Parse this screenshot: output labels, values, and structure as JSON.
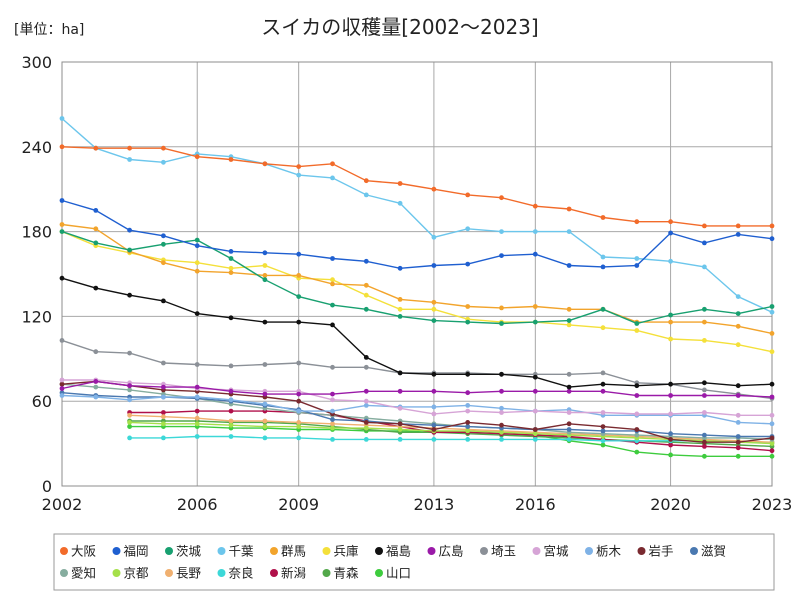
{
  "chart_data": {
    "type": "line",
    "title": "スイカの収穫量[2002〜2023]",
    "unit_label": "[単位：ha]",
    "x": [
      2002,
      2003,
      2004,
      2005,
      2006,
      2007,
      2008,
      2009,
      2010,
      2011,
      2012,
      2013,
      2014,
      2015,
      2016,
      2017,
      2018,
      2019,
      2020,
      2021,
      2022,
      2023
    ],
    "xlim": [
      2002,
      2023
    ],
    "xticks": [
      2002,
      2006,
      2009,
      2013,
      2016,
      2020,
      2023
    ],
    "ylim": [
      0,
      300
    ],
    "yticks": [
      0,
      60,
      120,
      180,
      240,
      300
    ],
    "grid": true,
    "legend_position": "bottom",
    "series": [
      {
        "name": "大阪",
        "color": "#f26b2a",
        "values": [
          240,
          239,
          239,
          239,
          233,
          231,
          228,
          226,
          228,
          216,
          214,
          210,
          206,
          204,
          198,
          196,
          190,
          187,
          187,
          184,
          184,
          184
        ]
      },
      {
        "name": "福岡",
        "color": "#1f5fd0",
        "values": [
          202,
          195,
          181,
          177,
          170,
          166,
          165,
          164,
          161,
          159,
          154,
          156,
          157,
          163,
          164,
          156,
          155,
          156,
          179,
          172,
          178,
          175
        ]
      },
      {
        "name": "茨城",
        "color": "#18a070",
        "values": [
          180,
          172,
          167,
          171,
          174,
          161,
          146,
          134,
          128,
          125,
          120,
          117,
          116,
          115,
          116,
          117,
          125,
          115,
          121,
          125,
          122,
          127
        ]
      },
      {
        "name": "千葉",
        "color": "#6cc6ec",
        "values": [
          260,
          239,
          231,
          229,
          235,
          233,
          228,
          220,
          218,
          206,
          200,
          176,
          182,
          180,
          180,
          180,
          162,
          161,
          159,
          155,
          134,
          123
        ]
      },
      {
        "name": "群馬",
        "color": "#f2a42c",
        "values": [
          185,
          182,
          166,
          158,
          152,
          151,
          149,
          149,
          143,
          142,
          132,
          130,
          127,
          126,
          127,
          125,
          125,
          116,
          116,
          116,
          113,
          108
        ]
      },
      {
        "name": "兵庫",
        "color": "#f4e03a",
        "values": [
          180,
          170,
          165,
          160,
          158,
          154,
          156,
          147,
          146,
          135,
          125,
          125,
          118,
          116,
          116,
          114,
          112,
          110,
          104,
          103,
          100,
          95
        ]
      },
      {
        "name": "福島",
        "color": "#111111",
        "values": [
          147,
          140,
          135,
          131,
          122,
          119,
          116,
          116,
          114,
          91,
          80,
          79,
          79,
          79,
          77,
          70,
          72,
          71,
          72,
          73,
          71,
          72
        ]
      },
      {
        "name": "広島",
        "color": "#9a1aa8",
        "values": [
          69,
          74,
          71,
          70,
          70,
          67,
          65,
          65,
          65,
          67,
          67,
          67,
          66,
          67,
          67,
          67,
          67,
          64,
          64,
          64,
          64,
          63
        ]
      },
      {
        "name": "埼玉",
        "color": "#8b9097",
        "values": [
          103,
          95,
          94,
          87,
          86,
          85,
          86,
          87,
          84,
          84,
          80,
          80,
          80,
          79,
          79,
          79,
          80,
          73,
          72,
          68,
          65,
          62
        ]
      },
      {
        "name": "宮城",
        "color": "#d6a4d6",
        "values": [
          75,
          75,
          73,
          72,
          69,
          68,
          67,
          67,
          61,
          60,
          55,
          51,
          53,
          52,
          53,
          52,
          52,
          51,
          51,
          52,
          50,
          50
        ]
      },
      {
        "name": "栃木",
        "color": "#7fb2e6",
        "values": [
          64,
          63,
          61,
          63,
          63,
          61,
          58,
          53,
          53,
          57,
          56,
          56,
          57,
          55,
          53,
          54,
          50,
          50,
          50,
          50,
          45,
          44
        ]
      },
      {
        "name": "岩手",
        "color": "#7a2a30",
        "values": [
          72,
          74,
          71,
          68,
          67,
          65,
          63,
          60,
          51,
          45,
          44,
          40,
          45,
          43,
          40,
          44,
          42,
          40,
          33,
          31,
          31,
          34
        ]
      },
      {
        "name": "滋賀",
        "color": "#4a78b0",
        "values": [
          66,
          64,
          63,
          63,
          62,
          60,
          57,
          54,
          47,
          46,
          44,
          43,
          42,
          41,
          40,
          40,
          39,
          39,
          37,
          36,
          35,
          35
        ]
      },
      {
        "name": "愛知",
        "color": "#86ad9f",
        "values": [
          72,
          70,
          68,
          65,
          62,
          58,
          55,
          52,
          50,
          48,
          46,
          44,
          42,
          41,
          40,
          38,
          37,
          36,
          35,
          34,
          34,
          33
        ]
      },
      {
        "name": "京都",
        "color": "#a5e04a",
        "values": [
          null,
          null,
          45,
          44,
          44,
          43,
          42,
          42,
          41,
          41,
          40,
          39,
          39,
          38,
          37,
          36,
          35,
          34,
          33,
          32,
          31,
          30
        ]
      },
      {
        "name": "長野",
        "color": "#f0b070",
        "values": [
          null,
          null,
          50,
          49,
          48,
          46,
          46,
          45,
          44,
          43,
          42,
          41,
          40,
          39,
          38,
          37,
          36,
          35,
          34,
          33,
          32,
          31
        ]
      },
      {
        "name": "奈良",
        "color": "#3cd8d8",
        "values": [
          null,
          null,
          34,
          34,
          35,
          35,
          34,
          34,
          33,
          33,
          33,
          33,
          33,
          33,
          33,
          33,
          32,
          32,
          32,
          32,
          31,
          31
        ]
      },
      {
        "name": "新潟",
        "color": "#b0104a",
        "values": [
          null,
          null,
          52,
          52,
          53,
          53,
          53,
          52,
          50,
          46,
          42,
          38,
          38,
          37,
          36,
          35,
          33,
          31,
          29,
          28,
          27,
          25
        ]
      },
      {
        "name": "青森",
        "color": "#52a84a",
        "values": [
          null,
          null,
          46,
          46,
          46,
          45,
          45,
          44,
          42,
          40,
          38,
          38,
          37,
          36,
          35,
          34,
          33,
          32,
          31,
          30,
          29,
          28
        ]
      },
      {
        "name": "山口",
        "color": "#3ecc3e",
        "values": [
          null,
          null,
          42,
          42,
          42,
          41,
          41,
          40,
          40,
          39,
          39,
          38,
          38,
          37,
          36,
          32,
          29,
          24,
          22,
          21,
          21,
          21
        ]
      }
    ]
  }
}
